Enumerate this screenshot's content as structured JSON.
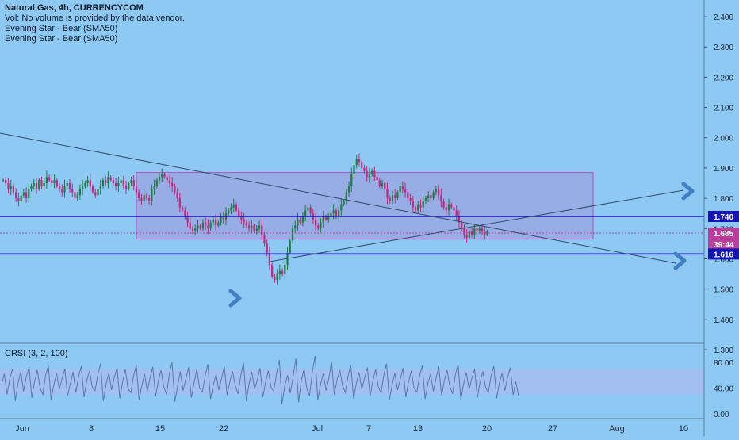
{
  "header": {
    "title": "Natural Gas, 4h, CURRENCYCOM",
    "lines": [
      "Vol: No volume is provided by the data vendor.",
      "Evening Star - Bear (SMA50)",
      "Evening Star - Bear (SMA50)"
    ]
  },
  "price_axis": {
    "ticks": [
      "2.400",
      "2.300",
      "2.200",
      "2.100",
      "2.000",
      "1.900",
      "1.800",
      "1.700",
      "1.600",
      "1.500",
      "1.400",
      "1.300"
    ]
  },
  "time_axis": {
    "ticks": [
      "Jun",
      "8",
      "15",
      "22",
      "Jul",
      "7",
      "13",
      "20",
      "27",
      "Aug",
      "10"
    ]
  },
  "price_labels": {
    "upper_line": "1.740",
    "last_price": "1.685",
    "countdown": "39:44",
    "lower_line": "1.616"
  },
  "indicator": {
    "title": "CRSI (3, 2, 100)",
    "ticks": [
      "80.00",
      "40.00",
      "0.00"
    ]
  },
  "colors": {
    "background": "#8ec9f3",
    "bull_candle": "#1f7a44",
    "bear_candle": "#c0287e",
    "range_box_fill": "#9aa3e0",
    "range_box_border": "#b24fc2",
    "horizontal_line": "#1515b5",
    "trendline": "#2f4b66",
    "arrow": "#3f7fc2",
    "last_price_badge": "#b93e9d",
    "crsi_line": "#5a79a8",
    "crsi_band": "#a9bdf0"
  },
  "chart_data": {
    "type": "candlestick",
    "symbol": "Natural Gas",
    "timeframe": "4h",
    "ylim": [
      1.25,
      2.45
    ],
    "x_categories": [
      "Jun",
      "8",
      "15",
      "22",
      "Jul",
      "7",
      "13",
      "20",
      "27",
      "Aug",
      "10"
    ],
    "close_series": [
      1.86,
      1.85,
      1.83,
      1.84,
      1.82,
      1.8,
      1.79,
      1.81,
      1.82,
      1.8,
      1.83,
      1.84,
      1.85,
      1.83,
      1.86,
      1.84,
      1.85,
      1.87,
      1.86,
      1.85,
      1.86,
      1.84,
      1.83,
      1.82,
      1.84,
      1.85,
      1.83,
      1.82,
      1.8,
      1.81,
      1.83,
      1.84,
      1.85,
      1.86,
      1.84,
      1.82,
      1.81,
      1.83,
      1.84,
      1.86,
      1.85,
      1.87,
      1.86,
      1.85,
      1.84,
      1.85,
      1.86,
      1.84,
      1.83,
      1.85,
      1.86,
      1.84,
      1.82,
      1.8,
      1.79,
      1.81,
      1.8,
      1.79,
      1.83,
      1.84,
      1.86,
      1.87,
      1.88,
      1.87,
      1.86,
      1.85,
      1.84,
      1.82,
      1.8,
      1.77,
      1.76,
      1.74,
      1.72,
      1.7,
      1.69,
      1.7,
      1.71,
      1.7,
      1.72,
      1.71,
      1.7,
      1.72,
      1.73,
      1.71,
      1.72,
      1.74,
      1.73,
      1.75,
      1.76,
      1.77,
      1.78,
      1.76,
      1.74,
      1.73,
      1.72,
      1.71,
      1.7,
      1.71,
      1.69,
      1.7,
      1.71,
      1.68,
      1.65,
      1.62,
      1.58,
      1.54,
      1.53,
      1.55,
      1.56,
      1.55,
      1.58,
      1.62,
      1.66,
      1.7,
      1.71,
      1.73,
      1.72,
      1.74,
      1.76,
      1.77,
      1.75,
      1.73,
      1.71,
      1.7,
      1.72,
      1.74,
      1.73,
      1.74,
      1.75,
      1.76,
      1.74,
      1.76,
      1.78,
      1.79,
      1.82,
      1.84,
      1.88,
      1.91,
      1.93,
      1.92,
      1.9,
      1.89,
      1.87,
      1.88,
      1.89,
      1.87,
      1.86,
      1.84,
      1.85,
      1.83,
      1.8,
      1.79,
      1.81,
      1.8,
      1.82,
      1.84,
      1.83,
      1.82,
      1.8,
      1.79,
      1.77,
      1.76,
      1.78,
      1.77,
      1.79,
      1.8,
      1.81,
      1.8,
      1.82,
      1.83,
      1.81,
      1.79,
      1.77,
      1.76,
      1.78,
      1.77,
      1.76,
      1.74,
      1.72,
      1.7,
      1.68,
      1.67,
      1.69,
      1.68,
      1.7,
      1.69,
      1.7,
      1.69,
      1.68,
      1.69
    ],
    "horizontal_levels": [
      1.74,
      1.616
    ],
    "last_price": 1.685,
    "range_box": {
      "from_index": 28,
      "to_index": 255,
      "top": 1.885,
      "bottom": 1.665
    },
    "trendlines": [
      {
        "from": {
          "index": -15,
          "price": 1.97
        },
        "to": {
          "index": 148,
          "price": 1.745
        },
        "extended_to": {
          "index": 290,
          "price": 1.53
        }
      },
      {
        "from": {
          "index": 111,
          "price": 1.528
        },
        "to": {
          "index": 290,
          "price": 1.79
        }
      }
    ],
    "arrows": [
      {
        "index": 100,
        "price": 1.42,
        "direction": "right"
      },
      {
        "index": 292,
        "price": 1.79,
        "direction": "right"
      },
      {
        "index": 288,
        "price": 1.53,
        "direction": "right"
      }
    ],
    "indicator": {
      "name": "CRSI",
      "params": [
        3,
        2,
        100
      ],
      "ylim": [
        0,
        100
      ],
      "band": [
        30,
        70
      ],
      "values": [
        45,
        62,
        30,
        55,
        70,
        20,
        48,
        66,
        35,
        58,
        72,
        25,
        50,
        68,
        40,
        30,
        60,
        75,
        22,
        45,
        63,
        38,
        55,
        70,
        28,
        47,
        65,
        33,
        58,
        74,
        26,
        52,
        67,
        41,
        36,
        61,
        78,
        20,
        46,
        64,
        37,
        57,
        71,
        24,
        49,
        69,
        39,
        33,
        59,
        76,
        21,
        44,
        62,
        35,
        56,
        73,
        27,
        51,
        68,
        42,
        30,
        62,
        80,
        19,
        43,
        66,
        36,
        54,
        72,
        25,
        48,
        70,
        40,
        34,
        58,
        77,
        23,
        45,
        61,
        37,
        55,
        74,
        29,
        50,
        66,
        43,
        31,
        60,
        79,
        20,
        47,
        65,
        38,
        53,
        71,
        26,
        49,
        67,
        41,
        35,
        63,
        84,
        15,
        44,
        60,
        32,
        57,
        86,
        18,
        52,
        70,
        39,
        28,
        65,
        90,
        22,
        46,
        63,
        36,
        55,
        81,
        30,
        53,
        68,
        44,
        33,
        59,
        76,
        24,
        48,
        64,
        38,
        56,
        72,
        27,
        51,
        69,
        42,
        32,
        61,
        78,
        21,
        45,
        63,
        37,
        54,
        71,
        26,
        50,
        67,
        40,
        34,
        58,
        75,
        23,
        47,
        62,
        35,
        56,
        73,
        28,
        52,
        68,
        43,
        31,
        60,
        77,
        22,
        46,
        64,
        38,
        55,
        70,
        25,
        49,
        66,
        41,
        33,
        59,
        74,
        24,
        48,
        63,
        36,
        57,
        72,
        29,
        50,
        28
      ]
    }
  }
}
